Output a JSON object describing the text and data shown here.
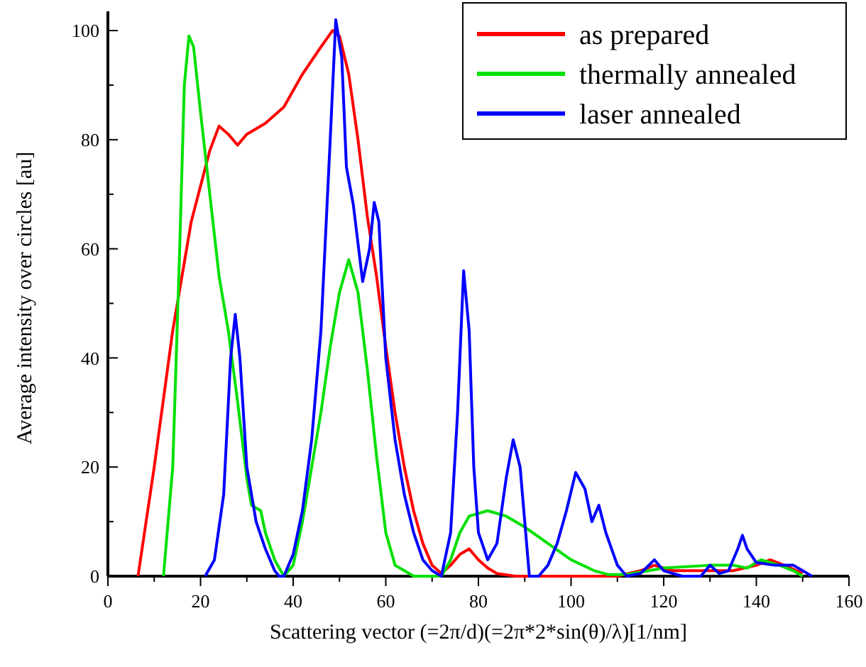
{
  "chart_data": {
    "type": "line",
    "xlabel": "Scattering vector (=2π/d)(=2π*2*sin(θ)/λ)[1/nm]",
    "ylabel": "Average intensity over circles [au]",
    "xlim": [
      0,
      160
    ],
    "ylim": [
      0,
      103
    ],
    "xticks": [
      0,
      {
        "value": 10,
        "label": null
      },
      20,
      {
        "value": 30,
        "label": null
      },
      40,
      {
        "value": 50,
        "label": null
      },
      60,
      {
        "value": 70,
        "label": null
      },
      80,
      {
        "value": 90,
        "label": null
      },
      100,
      {
        "value": 110,
        "label": null
      },
      120,
      {
        "value": 130,
        "label": null
      },
      140,
      {
        "value": 150,
        "label": null
      },
      160
    ],
    "yticks": [
      0,
      {
        "value": 10,
        "label": null
      },
      20,
      {
        "value": 30,
        "label": null
      },
      40,
      {
        "value": 50,
        "label": null
      },
      60,
      {
        "value": 70,
        "label": null
      },
      80,
      {
        "value": 90,
        "label": null
      },
      100
    ],
    "grid": false,
    "legend": "top right",
    "line_style": "solid",
    "marker": "none",
    "series": [
      {
        "name": "as prepared",
        "color": "#ff0000",
        "x": [
          6.5,
          10,
          14,
          18,
          22,
          24,
          26,
          28,
          30,
          34,
          38,
          42,
          46,
          48.5,
          50,
          52,
          54,
          56,
          58,
          60,
          62,
          64,
          66,
          68,
          70,
          72,
          74,
          76,
          78,
          80,
          82,
          84,
          88,
          100,
          110,
          115,
          118,
          122,
          128,
          135,
          140,
          143,
          146,
          150
        ],
        "values": [
          0,
          20,
          45,
          65,
          78,
          82.5,
          81,
          79,
          81,
          83,
          86,
          92,
          97,
          100,
          99,
          92,
          80,
          66,
          55,
          42,
          30,
          20,
          12,
          6,
          2,
          0.5,
          2,
          4,
          5,
          3,
          1.5,
          0.5,
          0,
          0,
          0,
          1,
          2,
          1,
          1,
          1,
          2,
          3,
          2,
          0.5
        ]
      },
      {
        "name": "thermally annealed",
        "color": "#00e000",
        "x": [
          12,
          14,
          15.5,
          16.5,
          17.5,
          18.5,
          20,
          22,
          24,
          26,
          28,
          30,
          31,
          33,
          34,
          36,
          38,
          40,
          42,
          44,
          46,
          48,
          50,
          52,
          54,
          56,
          58,
          60,
          62,
          64,
          66,
          72,
          74,
          76,
          78,
          82,
          86,
          90,
          95,
          100,
          105,
          108,
          112,
          120,
          130,
          135,
          138,
          141,
          145,
          148,
          150
        ],
        "values": [
          0,
          20,
          60,
          90,
          99,
          97,
          85,
          70,
          55,
          45,
          32,
          18,
          13,
          12,
          8,
          3,
          0,
          2,
          10,
          20,
          30,
          42,
          52,
          58,
          52,
          38,
          22,
          8,
          2,
          1,
          0,
          0,
          3,
          8,
          11,
          12,
          11,
          9,
          6,
          3,
          1,
          0.3,
          0.3,
          1.5,
          2,
          2,
          1.5,
          3,
          2,
          1,
          0
        ]
      },
      {
        "name": "laser annealed",
        "color": "#0000ff",
        "x": [
          21,
          23,
          25,
          26.5,
          27.5,
          28.5,
          30,
          32,
          34,
          36,
          37,
          38,
          40,
          42,
          44,
          46,
          48,
          49.2,
          50.5,
          51.5,
          53,
          55,
          56.5,
          57.5,
          58.5,
          60,
          62,
          64,
          66,
          68,
          70,
          72,
          74,
          75.5,
          76.8,
          78,
          79,
          80,
          82,
          84,
          86,
          87.5,
          89,
          90,
          91,
          93,
          95,
          97,
          99,
          101,
          103,
          104.5,
          106,
          107.5,
          110,
          112,
          115,
          118,
          120,
          124,
          128,
          130,
          132,
          134,
          136,
          137,
          138,
          140,
          144,
          148,
          150,
          152
        ],
        "values": [
          0,
          3,
          15,
          40,
          48,
          40,
          20,
          10,
          5,
          1,
          0,
          0,
          4,
          12,
          25,
          45,
          80,
          102,
          95,
          75,
          68,
          54,
          60,
          68.5,
          65,
          40,
          25,
          15,
          8,
          3,
          1,
          0,
          8,
          30,
          56,
          45,
          20,
          8,
          3,
          6,
          18,
          25,
          20,
          10,
          0,
          0,
          2,
          6,
          12,
          19,
          16,
          10,
          13,
          8,
          2,
          0,
          0.5,
          3,
          1,
          0,
          0,
          2,
          0.5,
          1,
          5,
          7.5,
          5,
          2.5,
          2,
          2,
          1,
          0
        ]
      }
    ]
  }
}
